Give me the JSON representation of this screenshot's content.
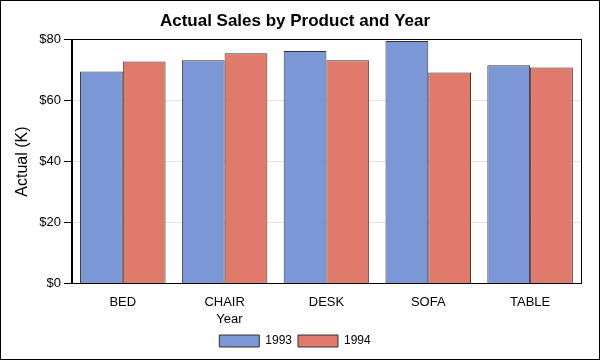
{
  "chart_data": {
    "type": "bar",
    "title": "Actual Sales by Product and Year",
    "y_label": "Actual (K)",
    "categories": [
      "BED",
      "CHAIR",
      "DESK",
      "SOFA",
      "TABLE"
    ],
    "legend_title": "Year",
    "series": [
      {
        "name": "1993",
        "color": "#7b97d6",
        "values": [
          69.5,
          73.2,
          76.2,
          79.5,
          71.5
        ]
      },
      {
        "name": "1994",
        "color": "#e07a6b",
        "values": [
          72.8,
          75.5,
          73.2,
          69.2,
          70.8
        ]
      }
    ],
    "ylim": [
      0,
      80
    ],
    "yticks": [
      {
        "value": 0,
        "label": "$0"
      },
      {
        "value": 20,
        "label": "$20"
      },
      {
        "value": 40,
        "label": "$40"
      },
      {
        "value": 60,
        "label": "$60"
      },
      {
        "value": 80,
        "label": "$80"
      }
    ],
    "grid": true,
    "legend": "bottom"
  }
}
